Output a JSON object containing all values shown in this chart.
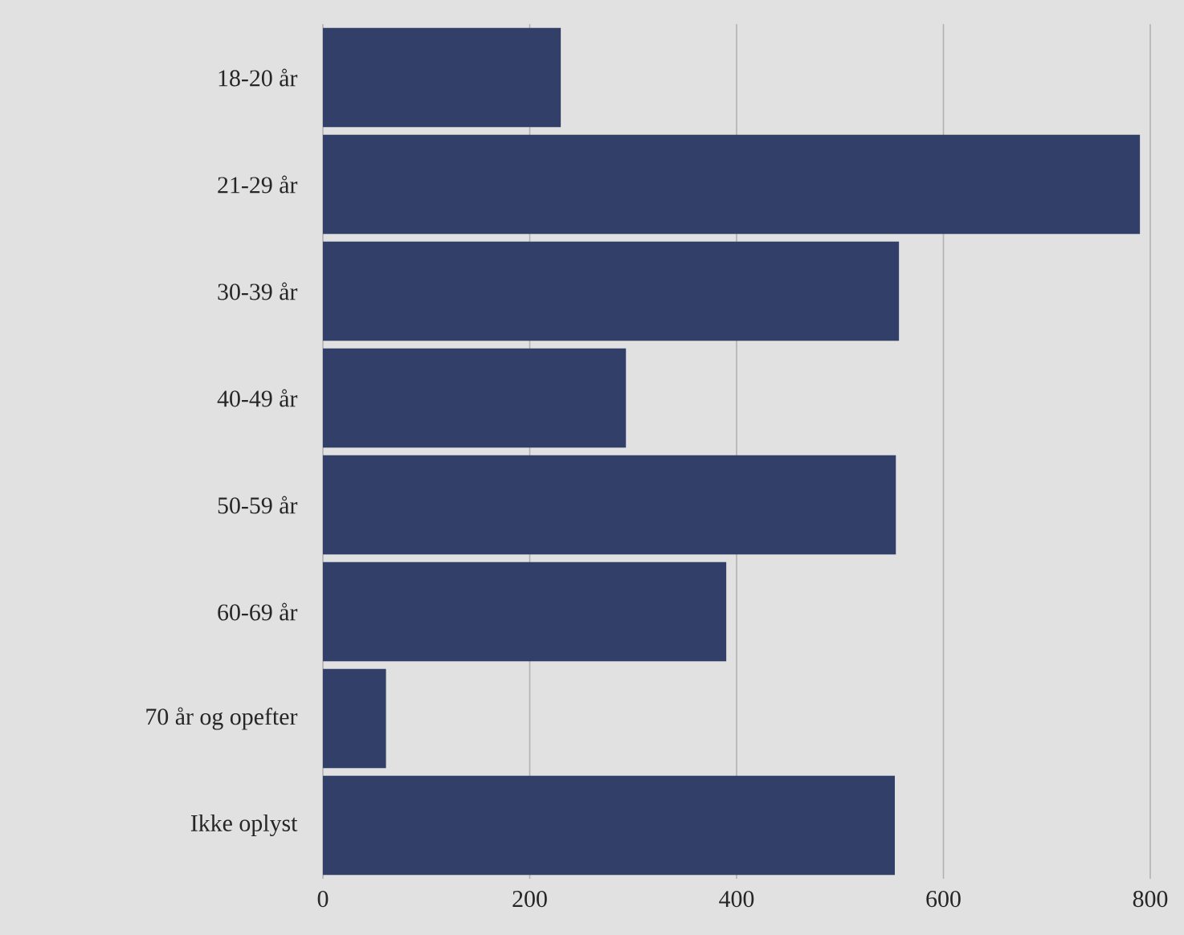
{
  "chart_data": {
    "type": "bar",
    "orientation": "horizontal",
    "categories": [
      "18-20 år",
      "21-29 år",
      "30-39 år",
      "40-49 år",
      "50-59 år",
      "60-69 år",
      "70 år og opefter",
      "Ikke oplyst"
    ],
    "values": [
      230,
      790,
      557,
      293,
      554,
      390,
      61,
      553
    ],
    "color": "#324069",
    "xlim": [
      0,
      800
    ],
    "xticks": [
      0,
      200,
      400,
      600,
      800
    ],
    "grid": "x"
  }
}
